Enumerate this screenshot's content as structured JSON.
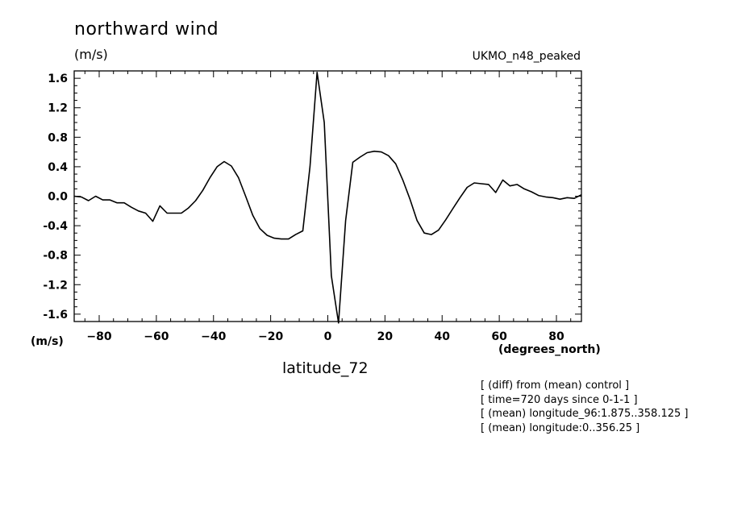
{
  "header": {
    "title": "northward wind",
    "units": "(m/s)",
    "dataset": "UKMO_n48_peaked"
  },
  "axes": {
    "y_unit": "(m/s)",
    "x_unit": "(degrees_north)",
    "x_label": "latitude_72"
  },
  "notes": [
    "[ (diff) from (mean) control ]",
    "[ time=720 days since 0-1-1 ]",
    "[ (mean) longitude_96:1.875..358.125 ]",
    "[ (mean) longitude:0..356.25 ]"
  ],
  "chart_data": {
    "type": "line",
    "title": "northward wind",
    "xlabel": "latitude_72",
    "ylabel": "(m/s)",
    "xlim": [
      -88.75,
      88.75
    ],
    "ylim": [
      -1.7,
      1.7
    ],
    "xticks": [
      -80,
      -60,
      -40,
      -20,
      0,
      20,
      40,
      60,
      80
    ],
    "yticks": [
      -1.6,
      -1.2,
      -0.8,
      -0.4,
      0.0,
      0.4,
      0.8,
      1.2,
      1.6
    ],
    "yticklabels": [
      "-1.6",
      "-1.2",
      "-0.8",
      "-0.4",
      "0.0",
      "0.4",
      "0.8",
      "1.2",
      "1.6"
    ],
    "grid": false,
    "series": [
      {
        "x": [
          -88.75,
          -86.25,
          -83.75,
          -81.25,
          -78.75,
          -76.25,
          -73.75,
          -71.25,
          -68.75,
          -66.25,
          -63.75,
          -61.25,
          -58.75,
          -56.25,
          -53.75,
          -51.25,
          -48.75,
          -46.25,
          -43.75,
          -41.25,
          -38.75,
          -36.25,
          -33.75,
          -31.25,
          -28.75,
          -26.25,
          -23.75,
          -21.25,
          -18.75,
          -16.25,
          -13.75,
          -11.25,
          -8.75,
          -6.25,
          -3.75,
          -1.25,
          1.25,
          3.75,
          6.25,
          8.75,
          11.25,
          13.75,
          16.25,
          18.75,
          21.25,
          23.75,
          26.25,
          28.75,
          31.25,
          33.75,
          36.25,
          38.75,
          41.25,
          43.75,
          46.25,
          48.75,
          51.25,
          53.75,
          56.25,
          58.75,
          61.25,
          63.75,
          66.25,
          68.75,
          71.25,
          73.75,
          76.25,
          78.75,
          81.25,
          83.75,
          86.25,
          88.75
        ],
        "values": [
          0.0,
          -0.01,
          -0.06,
          0.0,
          -0.05,
          -0.05,
          -0.09,
          -0.09,
          -0.15,
          -0.2,
          -0.23,
          -0.34,
          -0.13,
          -0.23,
          -0.23,
          -0.23,
          -0.16,
          -0.06,
          0.08,
          0.25,
          0.4,
          0.47,
          0.41,
          0.25,
          0.0,
          -0.26,
          -0.44,
          -0.53,
          -0.57,
          -0.58,
          -0.58,
          -0.52,
          -0.47,
          0.4,
          1.68,
          1.0,
          -1.08,
          -1.72,
          -0.33,
          0.46,
          0.53,
          0.59,
          0.61,
          0.6,
          0.55,
          0.44,
          0.22,
          -0.04,
          -0.33,
          -0.5,
          -0.52,
          -0.46,
          -0.32,
          -0.17,
          -0.02,
          0.12,
          0.18,
          0.17,
          0.16,
          0.05,
          0.22,
          0.14,
          0.16,
          0.1,
          0.06,
          0.01,
          -0.01,
          -0.02,
          -0.04,
          -0.02,
          -0.03,
          0.02
        ]
      }
    ]
  }
}
